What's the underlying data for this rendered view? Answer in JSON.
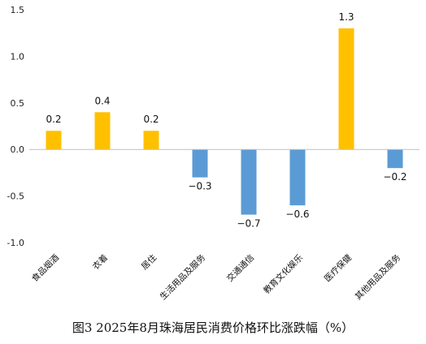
{
  "chart_data": {
    "type": "bar",
    "title": "图3 2025年8月珠海居民消费价格环比涨跌幅（%）",
    "categories": [
      "食品烟酒",
      "衣着",
      "居住",
      "生活用品及服务",
      "交通通信",
      "教育文化娱乐",
      "医疗保健",
      "其他用品及服务"
    ],
    "values": [
      0.2,
      0.4,
      0.2,
      -0.3,
      -0.7,
      -0.6,
      1.3,
      -0.2
    ],
    "data_labels": [
      "0.2",
      "0.4",
      "0.2",
      "−0.3",
      "−0.7",
      "−0.6",
      "1.3",
      "−0.2"
    ],
    "ylim": [
      -1.0,
      1.5
    ],
    "yticks": [
      "1.5",
      "1.0",
      "0.5",
      "0.0",
      "-0.5",
      "-1.0"
    ],
    "ytick_values": [
      1.5,
      1.0,
      0.5,
      0.0,
      -0.5,
      -1.0
    ],
    "xlabel": "",
    "ylabel": "",
    "grid": false,
    "legend": "none",
    "colors": {
      "positive": "#FFC000",
      "negative": "#5B9BD5",
      "axis": "#BFBFBF"
    }
  }
}
